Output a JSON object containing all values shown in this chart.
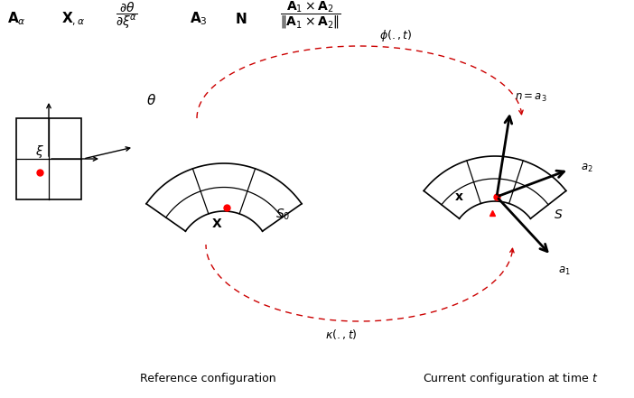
{
  "bg_color": "#ffffff",
  "fig_width": 7.02,
  "fig_height": 4.41,
  "dpi": 100,
  "ref_label": "Reference configuration",
  "cur_label": "Current configuration at time $t$"
}
